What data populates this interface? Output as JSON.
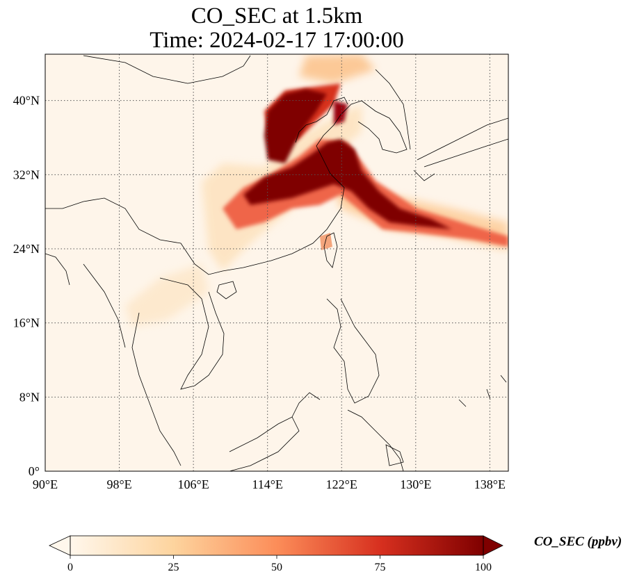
{
  "title": {
    "line1": "CO_SEC at 1.5km",
    "line2": "Time: 2024-02-17 17:00:00"
  },
  "map": {
    "lon_range": [
      90,
      140
    ],
    "lat_range": [
      0,
      45
    ],
    "lon_ticks": [
      "90°E",
      "98°E",
      "106°E",
      "114°E",
      "122°E",
      "130°E",
      "138°E"
    ],
    "lat_ticks": [
      "0°",
      "8°N",
      "16°N",
      "24°N",
      "32°N",
      "40°N"
    ],
    "gridlines": true,
    "background_color": "#fef5ea"
  },
  "colorbar": {
    "label": "CO_SEC (ppbv)",
    "colormap": "OrRd",
    "min": 0,
    "max": 100,
    "ticks": [
      "0",
      "25",
      "50",
      "75",
      "100"
    ],
    "extend": "both",
    "colors": [
      "#fff7ec",
      "#fdd49e",
      "#fc8d59",
      "#d7301f",
      "#7f0000"
    ]
  }
}
